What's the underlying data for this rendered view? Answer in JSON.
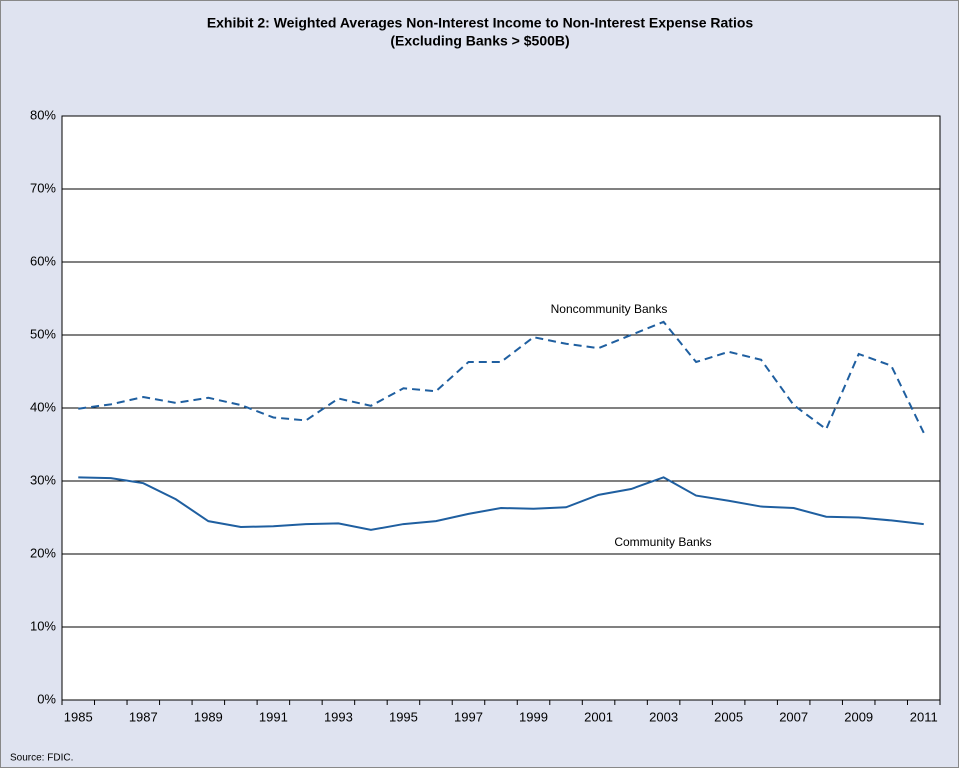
{
  "chart_data": {
    "type": "line",
    "title": "Exhibit 2: Weighted Averages Non-Interest Income to Non-Interest Expense Ratios",
    "subtitle": "(Excluding Banks > $500B)",
    "categories": [
      "1985",
      null,
      "1987",
      null,
      "1989",
      null,
      "1991",
      null,
      "1993",
      null,
      "1995",
      null,
      "1997",
      null,
      "1999",
      null,
      "2001",
      null,
      "2003",
      null,
      "2005",
      null,
      "2007",
      null,
      "2009",
      null,
      "2011"
    ],
    "series": [
      {
        "name": "Noncommunity Banks",
        "color": "#1f5fa0",
        "dashed": true,
        "values": [
          39.9,
          40.5,
          41.5,
          40.7,
          41.4,
          40.4,
          38.7,
          38.3,
          41.3,
          40.3,
          42.7,
          42.3,
          46.3,
          46.3,
          49.7,
          48.8,
          48.2,
          50.0,
          51.8,
          46.3,
          47.7,
          46.6,
          40.4,
          37.1,
          47.4,
          45.8,
          36.6
        ]
      },
      {
        "name": "Community Banks",
        "color": "#1f5fa0",
        "dashed": false,
        "values": [
          30.5,
          30.4,
          29.7,
          27.5,
          24.5,
          23.7,
          23.8,
          24.1,
          24.2,
          23.3,
          24.1,
          24.5,
          25.5,
          26.3,
          26.2,
          26.4,
          28.1,
          28.9,
          30.5,
          28.0,
          27.3,
          26.5,
          26.3,
          25.1,
          25.0,
          24.6,
          24.1
        ]
      }
    ],
    "ylim": [
      0,
      80
    ],
    "yticks": [
      {
        "value": 0,
        "label": "0%"
      },
      {
        "value": 10,
        "label": "10%"
      },
      {
        "value": 20,
        "label": "20%"
      },
      {
        "value": 30,
        "label": "30%"
      },
      {
        "value": 40,
        "label": "40%"
      },
      {
        "value": 50,
        "label": "50%"
      },
      {
        "value": 60,
        "label": "60%"
      },
      {
        "value": 70,
        "label": "70%"
      },
      {
        "value": 80,
        "label": "80%"
      }
    ],
    "grid": true,
    "source": "Source: FDIC."
  }
}
